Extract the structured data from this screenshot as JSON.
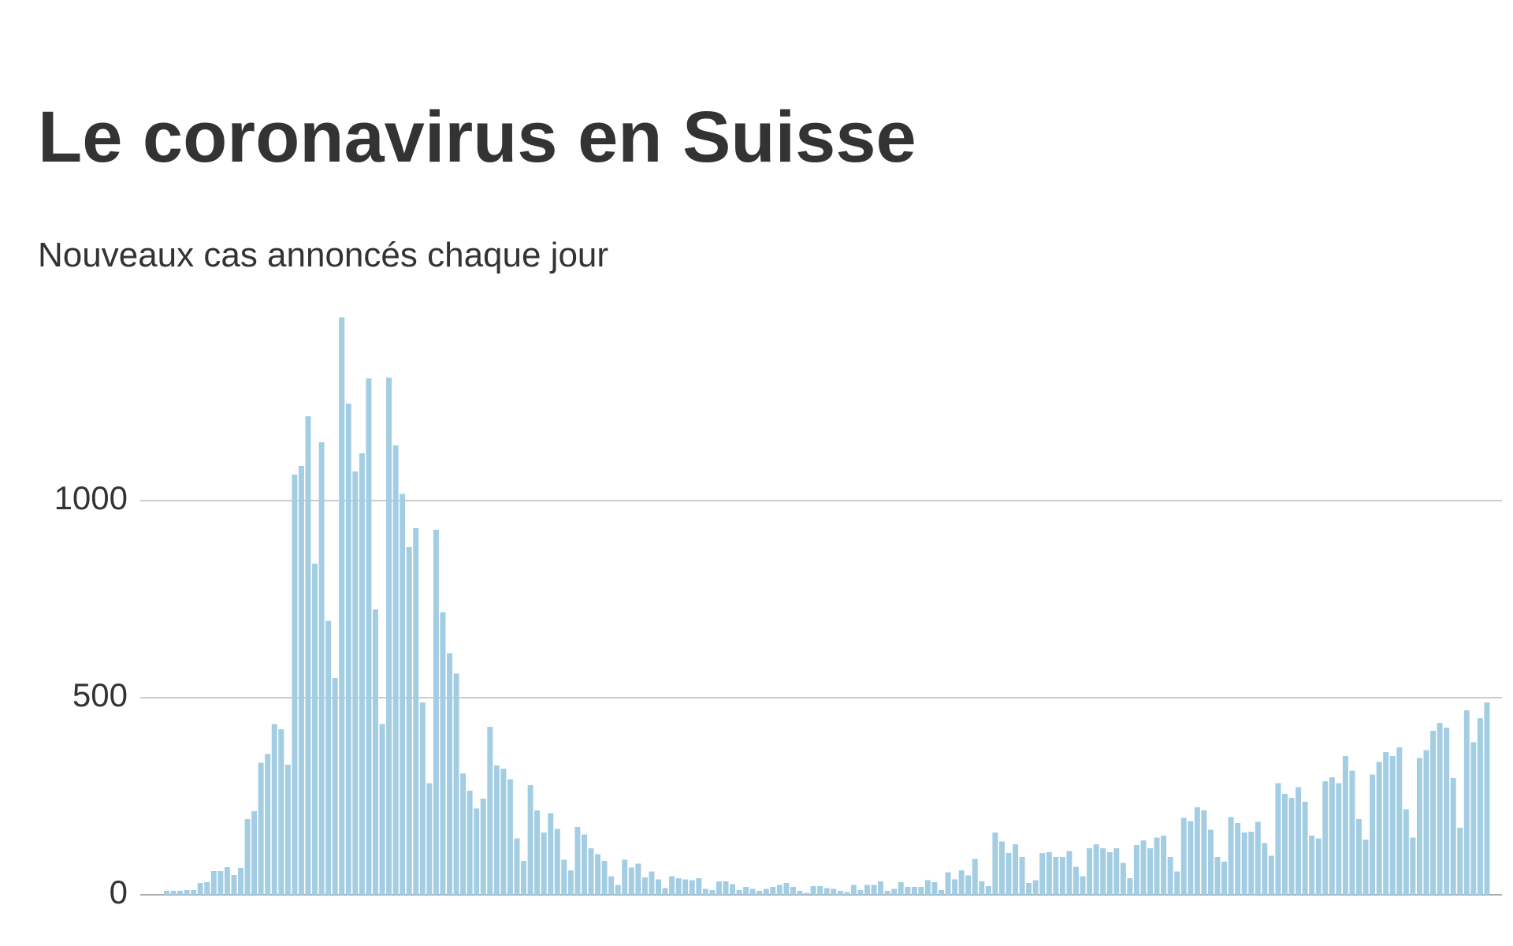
{
  "chart_data": {
    "type": "bar",
    "title": "Le coronavirus en Suisse",
    "subtitle": "Nouveaux cas annoncés chaque jour",
    "color": "#a3cde3",
    "ylim": [
      0,
      1500
    ],
    "yticks": [
      0,
      500,
      1000
    ],
    "grid": true,
    "values": [
      10,
      10,
      10,
      12,
      12,
      30,
      32,
      60,
      60,
      70,
      50,
      68,
      192,
      212,
      335,
      357,
      433,
      420,
      330,
      1066,
      1088,
      1214,
      840,
      1148,
      695,
      550,
      1465,
      1246,
      1074,
      1120,
      1310,
      724,
      433,
      1312,
      1140,
      1017,
      882,
      930,
      488,
      283,
      926,
      717,
      613,
      561,
      308,
      264,
      219,
      244,
      426,
      328,
      320,
      293,
      143,
      86,
      278,
      214,
      158,
      207,
      167,
      89,
      62,
      172,
      153,
      118,
      103,
      86,
      47,
      25,
      89,
      69,
      79,
      44,
      59,
      39,
      17,
      47,
      42,
      39,
      37,
      42,
      15,
      12,
      34,
      34,
      27,
      12,
      20,
      15,
      10,
      15,
      20,
      25,
      30,
      20,
      10,
      5,
      22,
      22,
      17,
      15,
      10,
      7,
      25,
      12,
      25,
      25,
      34,
      10,
      15,
      32,
      20,
      20,
      20,
      37,
      32,
      12,
      57,
      39,
      62,
      49,
      91,
      34,
      22,
      158,
      135,
      106,
      128,
      96,
      30,
      37,
      106,
      108,
      96,
      96,
      111,
      71,
      47,
      118,
      128,
      118,
      108,
      118,
      81,
      42,
      126,
      138,
      118,
      145,
      150,
      96,
      59,
      195,
      187,
      222,
      214,
      165,
      96,
      84,
      197,
      182,
      158,
      160,
      185,
      131,
      99,
      283,
      256,
      246,
      273,
      236,
      150,
      143,
      288,
      298,
      283,
      352,
      315,
      192,
      140,
      305,
      337,
      362,
      352,
      374,
      217,
      145,
      347,
      367,
      416,
      436,
      424,
      296,
      170,
      468,
      387,
      448,
      488
    ]
  }
}
